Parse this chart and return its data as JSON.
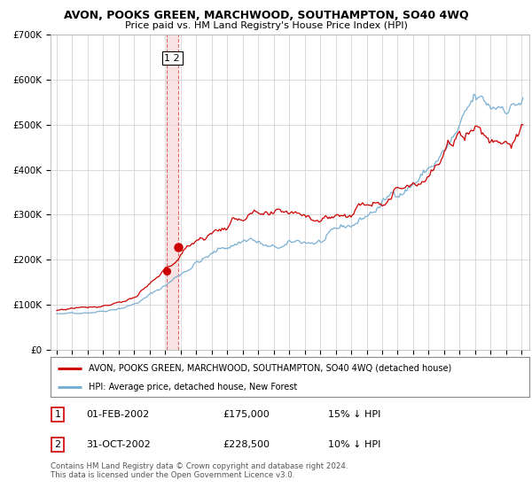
{
  "title": "AVON, POOKS GREEN, MARCHWOOD, SOUTHAMPTON, SO40 4WQ",
  "subtitle": "Price paid vs. HM Land Registry's House Price Index (HPI)",
  "legend_red": "AVON, POOKS GREEN, MARCHWOOD, SOUTHAMPTON, SO40 4WQ (detached house)",
  "legend_blue": "HPI: Average price, detached house, New Forest",
  "annotation1_label": "1",
  "annotation1_date": "01-FEB-2002",
  "annotation1_price": "£175,000",
  "annotation1_hpi": "15% ↓ HPI",
  "annotation2_label": "2",
  "annotation2_date": "31-OCT-2002",
  "annotation2_price": "£228,500",
  "annotation2_hpi": "10% ↓ HPI",
  "footer": "Contains HM Land Registry data © Crown copyright and database right 2024.\nThis data is licensed under the Open Government Licence v3.0.",
  "red_color": "#cc0000",
  "blue_color": "#7ab0d4",
  "vline_color": "#dd4444",
  "vband_color": "#f5d0d0",
  "background_color": "#ffffff",
  "grid_color": "#cccccc",
  "ylim": [
    0,
    700000
  ],
  "yticks": [
    0,
    100000,
    200000,
    300000,
    400000,
    500000,
    600000,
    700000
  ],
  "ytick_labels": [
    "£0",
    "£100K",
    "£200K",
    "£300K",
    "£400K",
    "£500K",
    "£600K",
    "£700K"
  ],
  "sale1_x": 2002.08,
  "sale1_y": 175000,
  "sale2_x": 2002.83,
  "sale2_y": 228500,
  "vline_x1": 2002.08,
  "vline_x2": 2002.83,
  "xlim_left": 1994.6,
  "xlim_right": 2025.5
}
